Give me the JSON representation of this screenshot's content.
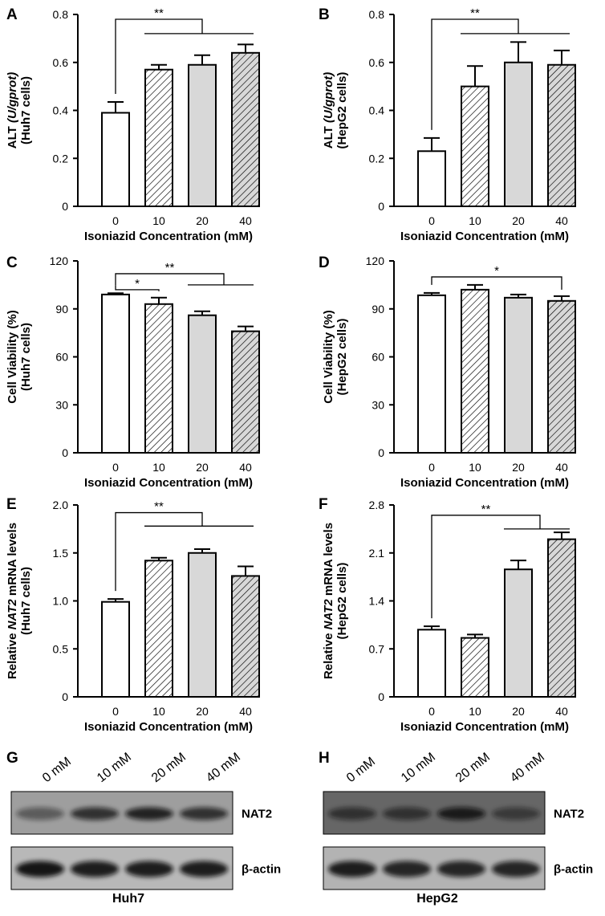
{
  "chart_data": [
    {
      "panel": "A",
      "type": "bar",
      "categories": [
        "0",
        "10",
        "20",
        "40"
      ],
      "values": [
        0.39,
        0.57,
        0.59,
        0.64
      ],
      "errors": [
        0.045,
        0.02,
        0.04,
        0.035
      ],
      "fills": [
        "white",
        "hatch",
        "gray",
        "hatch-gray"
      ],
      "ylim": [
        0,
        0.8
      ],
      "yticks": [
        "0",
        "0.2",
        "0.4",
        "0.6",
        "0.8"
      ],
      "ytick_values": [
        0,
        0.2,
        0.4,
        0.6,
        0.8
      ],
      "ylabel_parts": [
        "ALT ",
        "(U/gprot)"
      ],
      "ylabel2": "(Huh7 cells)",
      "xlabel": "Isoniazid Concentration  (mM)",
      "significance": [
        {
          "mark": "**",
          "from": 0,
          "to": [
            1,
            3
          ],
          "level": 0.78,
          "sub_level": 0.72
        }
      ]
    },
    {
      "panel": "B",
      "type": "bar",
      "categories": [
        "0",
        "10",
        "20",
        "40"
      ],
      "values": [
        0.23,
        0.5,
        0.6,
        0.59
      ],
      "errors": [
        0.055,
        0.085,
        0.085,
        0.06
      ],
      "fills": [
        "white",
        "hatch",
        "gray",
        "hatch-gray"
      ],
      "ylim": [
        0,
        0.8
      ],
      "yticks": [
        "0",
        "0.2",
        "0.4",
        "0.6",
        "0.8"
      ],
      "ytick_values": [
        0,
        0.2,
        0.4,
        0.6,
        0.8
      ],
      "ylabel_parts": [
        "ALT ",
        "(U/gprot)"
      ],
      "ylabel2": "(HepG2 cells)",
      "xlabel": "Isoniazid Concentration  (mM)",
      "significance": [
        {
          "mark": "**",
          "from": 0,
          "to": [
            1,
            3
          ],
          "level": 0.78,
          "sub_level": 0.72
        }
      ]
    },
    {
      "panel": "C",
      "type": "bar",
      "categories": [
        "0",
        "10",
        "20",
        "40"
      ],
      "values": [
        99,
        93,
        86,
        76
      ],
      "errors": [
        0.8,
        4,
        2.5,
        3
      ],
      "fills": [
        "white",
        "hatch",
        "gray",
        "hatch-gray"
      ],
      "ylim": [
        0,
        120
      ],
      "yticks": [
        "0",
        "30",
        "60",
        "90",
        "120"
      ],
      "ytick_values": [
        0,
        30,
        60,
        90,
        120
      ],
      "ylabel_parts": [
        "Cell Viability (%)"
      ],
      "ylabel2": "(Huh7 cells)",
      "xlabel": "Isoniazid Concentration  (mM)",
      "significance": [
        {
          "mark": "*",
          "from": 0,
          "to": [
            1
          ],
          "level": 102
        },
        {
          "mark": "**",
          "from": 0,
          "to": [
            2,
            3
          ],
          "level": 112,
          "sub_level": 105
        }
      ]
    },
    {
      "panel": "D",
      "type": "bar",
      "categories": [
        "0",
        "10",
        "20",
        "40"
      ],
      "values": [
        98.5,
        102,
        97,
        95
      ],
      "errors": [
        1.5,
        3,
        2,
        3
      ],
      "fills": [
        "white",
        "hatch",
        "gray",
        "hatch-gray"
      ],
      "ylim": [
        0,
        120
      ],
      "yticks": [
        "0",
        "30",
        "60",
        "90",
        "120"
      ],
      "ytick_values": [
        0,
        30,
        60,
        90,
        120
      ],
      "ylabel_parts": [
        "Cell Viability (%)"
      ],
      "ylabel2": "(HepG2 cells)",
      "xlabel": "Isoniazid Concentration  (mM)",
      "significance": [
        {
          "mark": "*",
          "from": 0,
          "to": [
            3
          ],
          "level": 110
        }
      ]
    },
    {
      "panel": "E",
      "type": "bar",
      "categories": [
        "0",
        "10",
        "20",
        "40"
      ],
      "values": [
        0.99,
        1.42,
        1.5,
        1.26
      ],
      "errors": [
        0.03,
        0.03,
        0.04,
        0.1
      ],
      "fills": [
        "white",
        "hatch",
        "gray",
        "hatch-gray"
      ],
      "ylim": [
        0,
        2.0
      ],
      "yticks": [
        "0",
        "0.5",
        "1.0",
        "1.5",
        "2.0"
      ],
      "ytick_values": [
        0,
        0.5,
        1.0,
        1.5,
        2.0
      ],
      "ylabel_parts": [
        "Relative ",
        "NAT2",
        " mRNA levels"
      ],
      "ylabel2": "(Huh7 cells)",
      "xlabel": "Isoniazid Concentration  (mM)",
      "significance": [
        {
          "mark": "**",
          "from": 0,
          "to": [
            1,
            3
          ],
          "level": 1.92,
          "sub_level": 1.78
        }
      ]
    },
    {
      "panel": "F",
      "type": "bar",
      "categories": [
        "0",
        "10",
        "20",
        "40"
      ],
      "values": [
        0.98,
        0.86,
        1.86,
        2.3
      ],
      "errors": [
        0.05,
        0.05,
        0.13,
        0.1
      ],
      "fills": [
        "white",
        "hatch",
        "gray",
        "hatch-gray"
      ],
      "ylim": [
        0,
        2.8
      ],
      "yticks": [
        "0",
        "0.7",
        "1.4",
        "2.1",
        "2.8"
      ],
      "ytick_values": [
        0,
        0.7,
        1.4,
        2.1,
        2.8
      ],
      "ylabel_parts": [
        "Relative ",
        "NAT2",
        " mRNA levels"
      ],
      "ylabel2": "(HepG2 cells)",
      "xlabel": "Isoniazid Concentration  (mM)",
      "significance": [
        {
          "mark": "**",
          "from": 0,
          "to": [
            2,
            3
          ],
          "level": 2.65,
          "sub_level": 2.45
        }
      ]
    }
  ],
  "blots": [
    {
      "panel": "G",
      "lanes": [
        "0 mM",
        "10 mM",
        "20 mM",
        "40 mM"
      ],
      "bands": [
        {
          "name": "NAT2",
          "intensity": [
            0.45,
            0.75,
            0.85,
            0.75
          ],
          "background": 0.62
        },
        {
          "name": "β-actin",
          "intensity": [
            0.95,
            0.9,
            0.9,
            0.9
          ],
          "background": 0.72
        }
      ],
      "cell_line": "Huh7"
    },
    {
      "panel": "H",
      "lanes": [
        "0 mM",
        "10 mM",
        "20 mM",
        "40 mM"
      ],
      "bands": [
        {
          "name": "NAT2",
          "intensity": [
            0.6,
            0.6,
            0.85,
            0.5
          ],
          "background": 0.4
        },
        {
          "name": "β-actin",
          "intensity": [
            0.9,
            0.85,
            0.85,
            0.85
          ],
          "background": 0.7
        }
      ],
      "cell_line": "HepG2"
    }
  ]
}
